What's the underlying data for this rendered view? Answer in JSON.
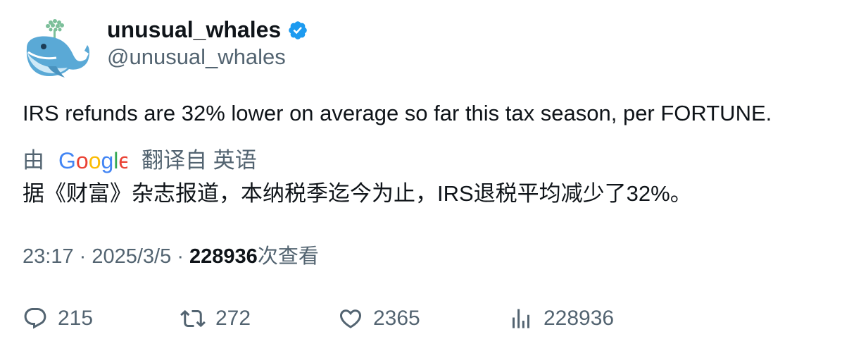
{
  "author": {
    "display_name": "unusual_whales",
    "handle": "@unusual_whales",
    "verified_icon": "verified-badge-icon",
    "avatar_icon": "whale-avatar-icon"
  },
  "tweet": {
    "text": "IRS refunds are 32% lower on average so far this tax season, per FORTUNE."
  },
  "translation": {
    "by": "由",
    "provider": "Google",
    "from_label": "翻译自 英语",
    "text": "据《财富》杂志报道，本纳税季迄今为止，IRS退税平均减少了32%。"
  },
  "meta": {
    "time": "23:17",
    "separator": "·",
    "date": "2025/3/5",
    "views_count": "228936",
    "views_label": "次查看"
  },
  "actions": {
    "replies": "215",
    "retweets": "272",
    "likes": "2365",
    "views": "228936"
  },
  "colors": {
    "text_primary": "#0f1419",
    "text_secondary": "#536471",
    "verified_blue": "#1d9bf0"
  }
}
